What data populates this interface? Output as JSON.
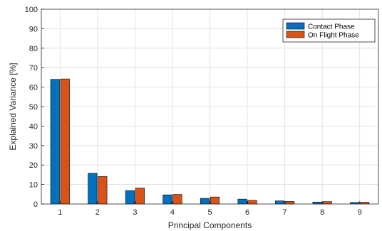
{
  "chart_data": {
    "type": "bar",
    "title": "",
    "xlabel": "Principal Components",
    "ylabel": "Explained Variance [%]",
    "categories": [
      "1",
      "2",
      "3",
      "4",
      "5",
      "6",
      "7",
      "8",
      "9"
    ],
    "ylim": [
      0,
      100
    ],
    "yticks": [
      0,
      10,
      20,
      30,
      40,
      50,
      60,
      70,
      80,
      90,
      100
    ],
    "grid": true,
    "legend_position": "top-right",
    "series": [
      {
        "name": "Contact Phase",
        "color": "#0072BD",
        "values": [
          64.0,
          15.8,
          6.9,
          4.7,
          2.9,
          2.5,
          1.6,
          1.0,
          0.8
        ]
      },
      {
        "name": "On Flight Phase",
        "color": "#D95319",
        "values": [
          64.2,
          14.1,
          8.2,
          4.9,
          3.6,
          1.9,
          1.3,
          1.2,
          0.9
        ]
      }
    ]
  }
}
